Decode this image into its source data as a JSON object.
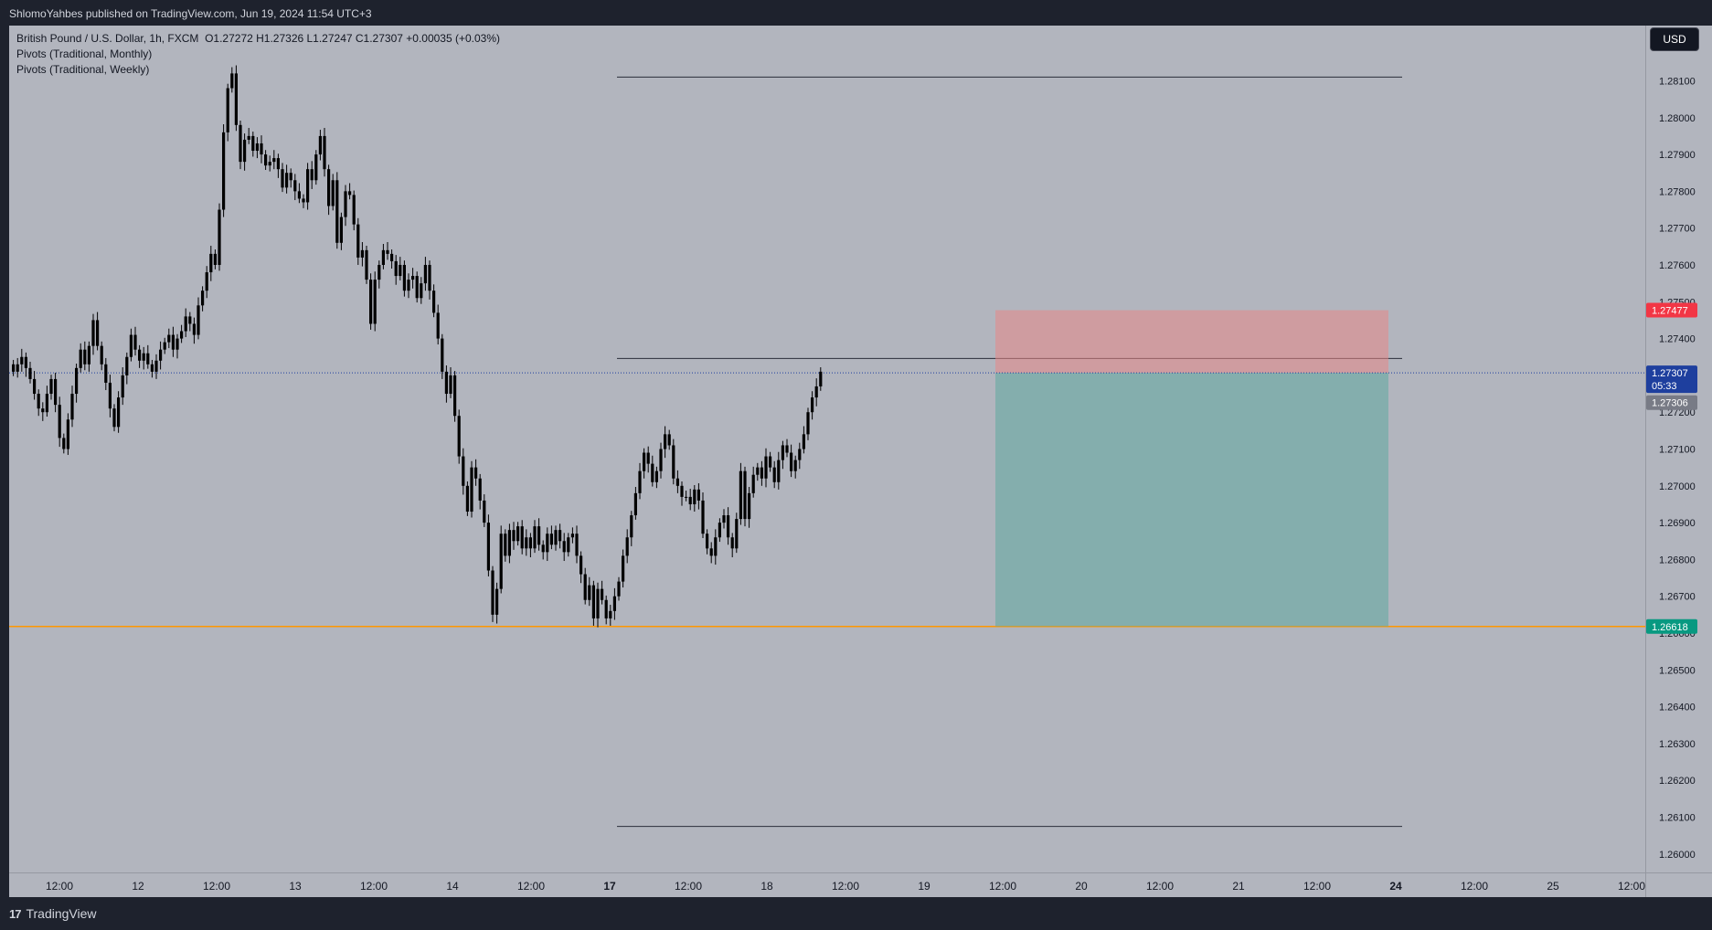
{
  "header": {
    "published": "ShlomoYahbes published on TradingView.com, Jun 19, 2024 11:54 UTC+3"
  },
  "legend": {
    "symbol": "British Pound / U.S. Dollar, 1h, FXCM",
    "ohlc": "O1.27272  H1.27326  L1.27247  C1.27307  +0.00035 (+0.03%)",
    "indicators": [
      "Pivots (Traditional, Monthly)",
      "Pivots (Traditional, Weekly)"
    ]
  },
  "currency_button": "USD",
  "footer": {
    "brand": "TradingView",
    "logo": "17"
  },
  "colors": {
    "background": "#b2b5be",
    "candle": "#000000",
    "stop_zone": "#f0808080",
    "target_zone": "#26a69a",
    "support_line": "#ff9800",
    "last_price_label": "#1e3f9e",
    "stop_label": "#f23645",
    "target_label": "#089981"
  },
  "chart_data": {
    "type": "candlestick",
    "symbol": "GBPUSD",
    "timeframe": "1h",
    "y_range": [
      1.2595,
      1.2825
    ],
    "y_ticks": [
      "1.28100",
      "1.28000",
      "1.27900",
      "1.27800",
      "1.27700",
      "1.27600",
      "1.27500",
      "1.27400",
      "1.27300",
      "1.27200",
      "1.27100",
      "1.27000",
      "1.26900",
      "1.26800",
      "1.26700",
      "1.26600",
      "1.26500",
      "1.26400",
      "1.26300",
      "1.26200",
      "1.26100",
      "1.26000"
    ],
    "x_ticks": [
      {
        "label": "12:00",
        "bold": false
      },
      {
        "label": "12",
        "bold": false
      },
      {
        "label": "12:00",
        "bold": false
      },
      {
        "label": "13",
        "bold": false
      },
      {
        "label": "12:00",
        "bold": false
      },
      {
        "label": "14",
        "bold": false
      },
      {
        "label": "12:00",
        "bold": false
      },
      {
        "label": "17",
        "bold": true
      },
      {
        "label": "12:00",
        "bold": false
      },
      {
        "label": "18",
        "bold": false
      },
      {
        "label": "12:00",
        "bold": false
      },
      {
        "label": "19",
        "bold": false
      },
      {
        "label": "12:00",
        "bold": false
      },
      {
        "label": "20",
        "bold": false
      },
      {
        "label": "12:00",
        "bold": false
      },
      {
        "label": "21",
        "bold": false
      },
      {
        "label": "12:00",
        "bold": false
      },
      {
        "label": "24",
        "bold": true
      },
      {
        "label": "12:00",
        "bold": false
      },
      {
        "label": "25",
        "bold": false
      },
      {
        "label": "12:00",
        "bold": false
      }
    ],
    "candles_close_path": [
      1.2731,
      1.2733,
      1.2735,
      1.2732,
      1.2729,
      1.2725,
      1.2721,
      1.272,
      1.2725,
      1.2729,
      1.2722,
      1.2713,
      1.271,
      1.2718,
      1.2725,
      1.2732,
      1.2737,
      1.2733,
      1.2738,
      1.2745,
      1.2738,
      1.2733,
      1.2728,
      1.2721,
      1.2716,
      1.2724,
      1.273,
      1.2735,
      1.2741,
      1.2737,
      1.2734,
      1.2736,
      1.2733,
      1.2731,
      1.2734,
      1.2737,
      1.2739,
      1.2741,
      1.2737,
      1.274,
      1.2742,
      1.2746,
      1.2744,
      1.2741,
      1.2749,
      1.2753,
      1.2758,
      1.2763,
      1.276,
      1.2775,
      1.2796,
      1.2808,
      1.2812,
      1.2798,
      1.2788,
      1.2794,
      1.2795,
      1.2791,
      1.2793,
      1.279,
      1.2787,
      1.2788,
      1.2789,
      1.2786,
      1.2781,
      1.2785,
      1.2783,
      1.278,
      1.2778,
      1.2777,
      1.2786,
      1.2783,
      1.279,
      1.2795,
      1.2786,
      1.2776,
      1.2783,
      1.2766,
      1.2773,
      1.278,
      1.2779,
      1.2771,
      1.2762,
      1.2764,
      1.2756,
      1.2744,
      1.2756,
      1.276,
      1.2764,
      1.2763,
      1.2761,
      1.2757,
      1.276,
      1.2753,
      1.2756,
      1.2757,
      1.2751,
      1.2755,
      1.276,
      1.2753,
      1.2747,
      1.274,
      1.2731,
      1.2725,
      1.273,
      1.2719,
      1.2708,
      1.27,
      1.2693,
      1.2705,
      1.2702,
      1.2696,
      1.269,
      1.2677,
      1.2665,
      1.2672,
      1.2687,
      1.2681,
      1.2688,
      1.2685,
      1.2689,
      1.2683,
      1.2686,
      1.2683,
      1.2689,
      1.2684,
      1.2682,
      1.2687,
      1.2684,
      1.2688,
      1.2685,
      1.2682,
      1.2686,
      1.2687,
      1.2681,
      1.2676,
      1.2669,
      1.2673,
      1.2664,
      1.2672,
      1.2669,
      1.2664,
      1.2666,
      1.267,
      1.2674,
      1.2681,
      1.2686,
      1.2692,
      1.2698,
      1.2704,
      1.2709,
      1.2706,
      1.2701,
      1.2704,
      1.271,
      1.2714,
      1.2711,
      1.2702,
      1.27,
      1.2697,
      1.2697,
      1.2695,
      1.2699,
      1.2696,
      1.2687,
      1.2683,
      1.2681,
      1.2686,
      1.269,
      1.2692,
      1.2686,
      1.2683,
      1.2691,
      1.2704,
      1.2691,
      1.2698,
      1.2703,
      1.2705,
      1.2702,
      1.2708,
      1.2705,
      1.2701,
      1.2707,
      1.2711,
      1.2709,
      1.2704,
      1.2707,
      1.271,
      1.2714,
      1.272,
      1.2724,
      1.2727,
      1.2731
    ],
    "horizontal_lines": [
      {
        "name": "pivot-upper",
        "price": 1.2811
      },
      {
        "name": "pivot-mid",
        "price": 1.27346
      },
      {
        "name": "pivot-lower",
        "price": 1.26075
      },
      {
        "name": "support",
        "price": 1.26618
      }
    ],
    "position": {
      "type": "short",
      "entry": 1.27307,
      "stop": 1.27477,
      "target": 1.26618
    },
    "price_labels": {
      "stop": "1.27477",
      "last": "1.27307",
      "countdown": "05:33",
      "prev": "1.27306",
      "target": "1.26618"
    }
  }
}
